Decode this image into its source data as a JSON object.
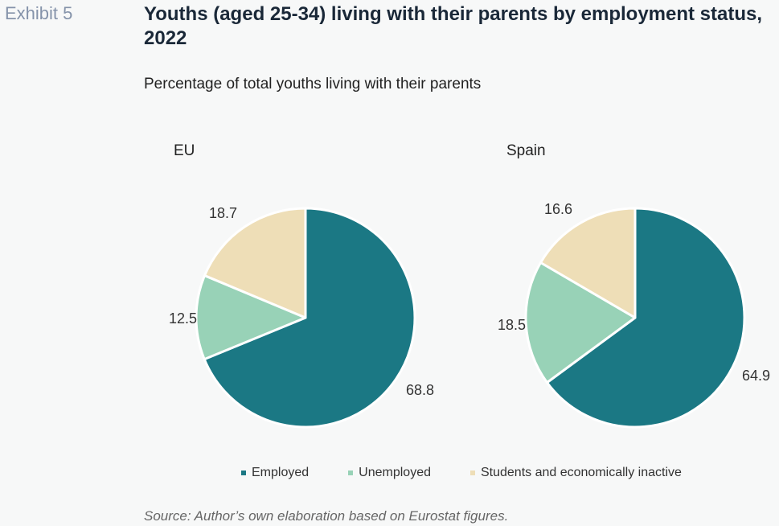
{
  "exhibit_label": "Exhibit 5",
  "title": "Youths (aged 25-34) living with their parents by employment status, 2022",
  "subtitle": "Percentage of total youths living with their parents",
  "source": "Source: Author’s own elaboration based on Eurostat figures.",
  "colors": {
    "employed": "#1b7884",
    "unemployed": "#98d2b7",
    "students": "#eedeb7"
  },
  "chart_data": [
    {
      "type": "pie",
      "title": "EU",
      "categories": [
        "Employed",
        "Unemployed",
        "Students and economically inactive"
      ],
      "values": [
        68.8,
        12.5,
        18.7
      ],
      "value_labels": [
        "68.8",
        "12.5",
        "18.7"
      ]
    },
    {
      "type": "pie",
      "title": "Spain",
      "categories": [
        "Employed",
        "Unemployed",
        "Students and economically inactive"
      ],
      "values": [
        64.9,
        18.5,
        16.6
      ],
      "value_labels": [
        "64.9",
        "18.5",
        "16.6"
      ]
    }
  ],
  "legend": [
    {
      "label": "Employed",
      "color": "#1b7884"
    },
    {
      "label": "Unemployed",
      "color": "#98d2b7"
    },
    {
      "label": "Students and economically inactive",
      "color": "#eedeb7"
    }
  ]
}
